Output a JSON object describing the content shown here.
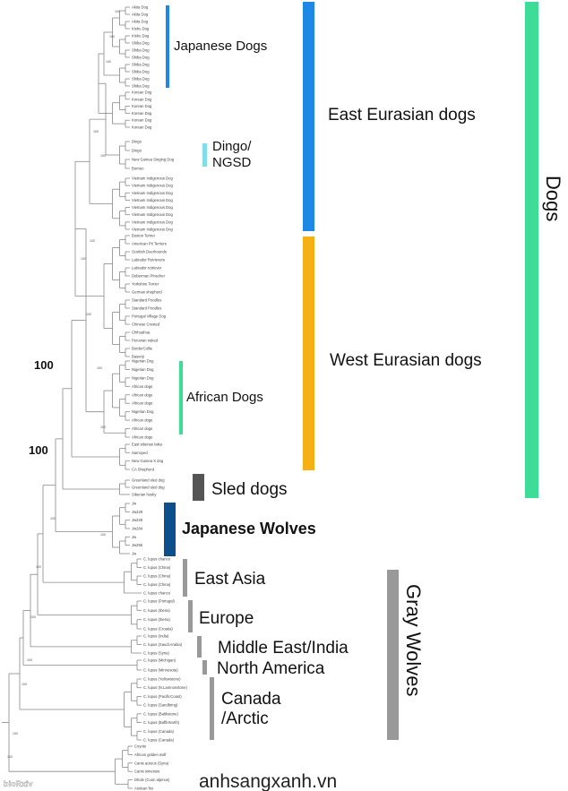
{
  "groups": {
    "japanese_dogs": "Japanese Dogs",
    "dingo_line1": "Dingo/",
    "dingo_line2": "NGSD",
    "east_eurasian": "East Eurasian dogs",
    "west_eurasian": "West Eurasian dogs",
    "african": "African Dogs",
    "sled": "Sled dogs",
    "japanese_wolves": "Japanese Wolves",
    "east_asia": "East Asia",
    "europe": "Europe",
    "middle_east": "Middle East/India",
    "north_america": "North America",
    "canada_line1": "Canada",
    "canada_line2": "/Arctic",
    "dogs": "Dogs",
    "gray_wolves": "Gray Wolves"
  },
  "bootstrap": {
    "top": "100",
    "bottom": "100"
  },
  "colors": {
    "east_eurasian": "#1e88e5",
    "dingo": "#80deea",
    "west_eurasian": "#f5b014",
    "african": "#3ddc97",
    "dogs": "#3ddc97",
    "sled": "#555555",
    "japanese_wolves": "#0d4f8b",
    "gray_wolves": "#999999",
    "tree_line": "#888888"
  },
  "leaves": {
    "japanese": [
      "Akita Dog",
      "Akita Dog",
      "Akita Dog",
      "Kishu Dog",
      "Kishu Dog",
      "Shiba Dog",
      "Shiba Dog",
      "Shiba Dog",
      "Shiba Dog",
      "Shiba Dog",
      "Shiba Dog",
      "Shiba Dog"
    ],
    "korean": [
      "Korean Dog",
      "Korean Dog",
      "Korean Dog",
      "Korean Dog",
      "Korean Dog",
      "Korean Dog"
    ],
    "dingo": [
      "Dingo",
      "Dingo",
      "New Guinea Singing Dog",
      "Borneo"
    ],
    "vietnam": [
      "Vietnam Indigenous Dog",
      "Vietnam Indigenous Dog",
      "Vietnam Indigenous Dog",
      "Vietnam Indigenous Dog",
      "Vietnam Indigenous Dog",
      "Vietnam Indigenous Dog",
      "Vietnam Indigenous Dog",
      "Vietnam Indigenous Dog"
    ],
    "west": [
      "Boston Terrier",
      "American Pit Terriers",
      "Scottish Deerhounds",
      "Labrador Retrievers",
      "Labrador retriever",
      "Doberman Pinscher",
      "Yorkshire Terrier",
      "German shepherd",
      "Standard Poodles",
      "Standard Poodles",
      "Portugal Village Dog",
      "Chinese Crested",
      "Chihuahua",
      "Peruvian naked",
      "BorderCollie",
      "Basenji"
    ],
    "african": [
      "Nigerian Dog",
      "Nigerian Dog",
      "Nigerian Dog",
      "African dogs",
      "African dogs",
      "African dogs",
      "Nigerian Dog",
      "African dogs",
      "African dogs",
      "African dogs"
    ],
    "west2": [
      "East siberian laika",
      "Samoyed",
      "New Guinea X dog",
      "CA Shepherd"
    ],
    "sled": [
      "Greenland sled dog",
      "Greenland sled dog",
      "Siberian husky"
    ],
    "jwolves": [
      "Jw",
      "Jw229",
      "Jw229",
      "Jw284",
      "Jw",
      "Jw255",
      "Jw"
    ],
    "east_asia": [
      "C. lupus chanco",
      "C. lupus (China)",
      "C. lupus (China)",
      "C. lupus (China)",
      "C. lupus chanco"
    ],
    "europe": [
      "C. lupus (Portugal)",
      "C. lupus (Iberia)",
      "C. lupus (Iberia)",
      "C. lupus (Croatia)"
    ],
    "middle_east": [
      "C. lupus (India)",
      "C. lupus (Saudi Arabia)",
      "C. lupus (Syria)"
    ],
    "north_america": [
      "C. lupus (Michigan)",
      "C. lupus (Minnesota)"
    ],
    "canada": [
      "C. lupus (Yellowstone)",
      "C. lupus (N.Lamnonstone)",
      "C. lupus (PacificCoast)",
      "C. lupus (Sandbring)",
      "C. lupus (Baltkstone)",
      "C. lupus (BaffinNorth)",
      "C. lupus (Canada)",
      "C. lupus (Canada)"
    ],
    "outgroups": [
      "Coyote",
      "African golden wolf",
      "Canis aureus (Syria)",
      "Canis simensis",
      "Dhole (Cuon alpinus)",
      "Andean fox"
    ]
  },
  "watermark": "anhsangxanh.vn",
  "logo": "bioRxiv"
}
